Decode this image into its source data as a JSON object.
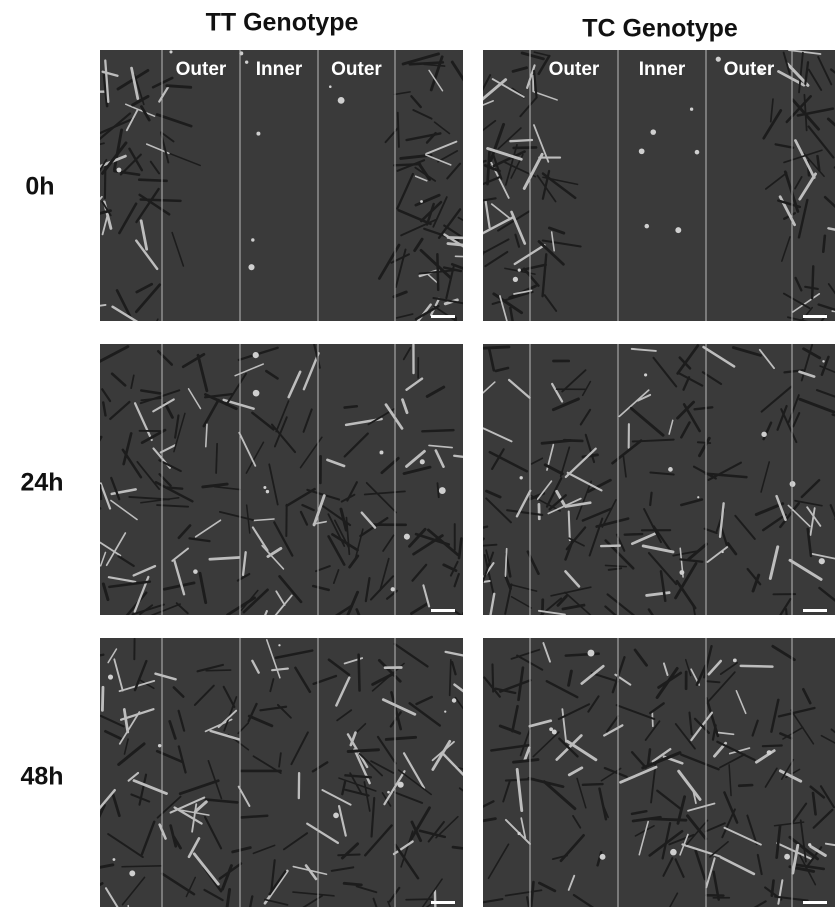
{
  "columns": [
    {
      "title": "TT Genotype",
      "zones": [
        "Outer",
        "Inner",
        "Outer"
      ]
    },
    {
      "title": "TC Genotype",
      "zones": [
        "Outer",
        "Inner",
        "Outer"
      ]
    }
  ],
  "rows": [
    "0h",
    "24h",
    "48h"
  ]
}
